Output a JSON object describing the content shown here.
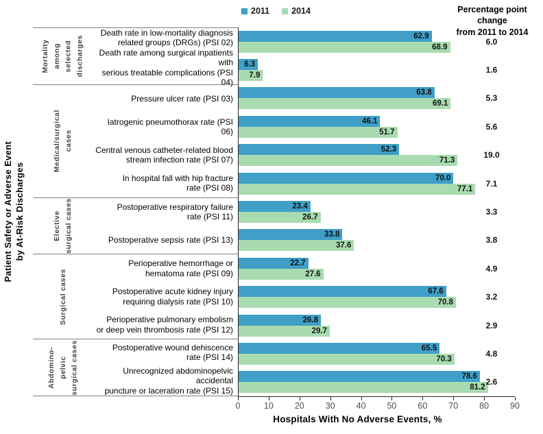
{
  "legend": {
    "items": [
      {
        "label": "2011",
        "color": "#3F9FC7"
      },
      {
        "label": "2014",
        "color": "#A8DBB0"
      }
    ]
  },
  "change_header": {
    "lines": [
      "Percentage point",
      "change",
      "from 2011 to 2014"
    ]
  },
  "y_axis_title_lines": [
    "Patient Safety or Adverse Event",
    "by At-Risk  Discharges"
  ],
  "chart_data": {
    "type": "bar",
    "orientation": "horizontal",
    "xlabel": "Hospitals With No Adverse Events, %",
    "xlim": [
      0,
      90
    ],
    "x_ticks": [
      0,
      10,
      20,
      30,
      40,
      50,
      60,
      70,
      80,
      90
    ],
    "series": [
      "2011",
      "2014"
    ],
    "colors": {
      "2011": "#3F9FC7",
      "2014": "#A8DBB0"
    },
    "grid": false,
    "legend_position": "top",
    "groups": [
      {
        "label": "Mortality among selected discharges",
        "label_lines": [
          "Mortality",
          "among",
          "selected",
          "discharges"
        ],
        "rows": [
          {
            "category_lines": [
              "Death rate in low-mortality diagnosis",
              "related groups (DRGs) (PSI 02)"
            ],
            "v2011": 62.9,
            "v2014": 68.9,
            "change": "6.0"
          },
          {
            "category_lines": [
              "Death rate among surgical inpatients with",
              "serious treatable complications (PSI 04)"
            ],
            "v2011": 6.3,
            "v2014": 7.9,
            "change": "1.6"
          }
        ]
      },
      {
        "label": "Medical/surgical cases",
        "label_lines": [
          "Medical/surgical",
          "cases"
        ],
        "rows": [
          {
            "category_lines": [
              "Pressure ulcer rate (PSI 03)"
            ],
            "v2011": 63.8,
            "v2014": 69.1,
            "change": "5.3"
          },
          {
            "category_lines": [
              "Iatrogenic pneumothorax rate (PSI 06)"
            ],
            "v2011": 46.1,
            "v2014": 51.7,
            "change": "5.6"
          },
          {
            "category_lines": [
              "Central venous catheter-related blood",
              "stream infection rate (PSI 07)"
            ],
            "v2011": 52.3,
            "v2014": 71.3,
            "change": "19.0"
          },
          {
            "category_lines": [
              "In hospital fall with hip fracture",
              "rate (PSI 08)"
            ],
            "v2011": 70.0,
            "v2014": 77.1,
            "change": "7.1"
          }
        ]
      },
      {
        "label": "Elective surgical cases",
        "label_lines": [
          "Elective",
          "surgical cases"
        ],
        "rows": [
          {
            "category_lines": [
              "Postoperative respiratory failure",
              "rate (PSI 11)"
            ],
            "v2011": 23.4,
            "v2014": 26.7,
            "change": "3.3"
          },
          {
            "category_lines": [
              "Postoperative sepsis rate (PSI 13)"
            ],
            "v2011": 33.8,
            "v2014": 37.6,
            "change": "3.8"
          }
        ]
      },
      {
        "label": "Surgical cases",
        "label_lines": [
          "Surgical cases"
        ],
        "rows": [
          {
            "category_lines": [
              "Perioperative hemorrhage or",
              "hematoma rate (PSI 09)"
            ],
            "v2011": 22.7,
            "v2014": 27.6,
            "change": "4.9"
          },
          {
            "category_lines": [
              "Postoperative acute kidney injury",
              "requiring dialysis rate (PSI 10)"
            ],
            "v2011": 67.6,
            "v2014": 70.8,
            "change": "3.2"
          },
          {
            "category_lines": [
              "Perioperative pulmonary embolism",
              "or deep vein thrombosis rate (PSI 12)"
            ],
            "v2011": 26.8,
            "v2014": 29.7,
            "change": "2.9"
          }
        ]
      },
      {
        "label": "Abdomino-pelvic surgical cases",
        "label_lines": [
          "Abdomino-",
          "pelvic",
          "surgical cases"
        ],
        "rows": [
          {
            "category_lines": [
              "Postoperative wound dehiscence",
              "rate (PSI 14)"
            ],
            "v2011": 65.5,
            "v2014": 70.3,
            "change": "4.8"
          },
          {
            "category_lines": [
              "Unrecognized abdominopelvic accidental",
              "puncture or laceration rate (PSI 15)"
            ],
            "v2011": 78.6,
            "v2014": 81.2,
            "change": "2.6"
          }
        ]
      }
    ]
  }
}
